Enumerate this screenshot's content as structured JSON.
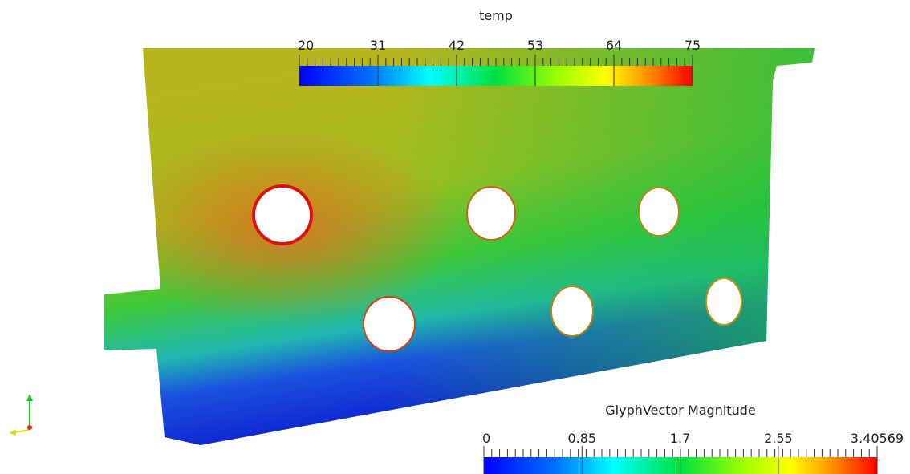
{
  "colorbars": [
    {
      "title": "temp",
      "range": [
        20,
        75
      ],
      "ticks": [
        20,
        31,
        42,
        53,
        64,
        75
      ]
    },
    {
      "title": "GlyphVector Magnitude",
      "range": [
        0,
        3.40569
      ],
      "ticks": [
        0,
        0.85,
        1.7,
        2.55,
        3.40569
      ]
    }
  ]
}
